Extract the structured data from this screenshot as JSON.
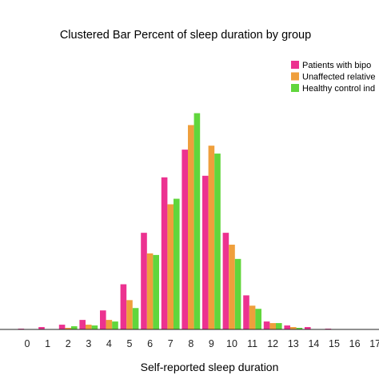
{
  "chart_data": {
    "type": "bar",
    "title": "Clustered Bar Percent of sleep duration by group",
    "xlabel": "Self-reported sleep duration",
    "ylabel": "",
    "grid": false,
    "legend_position": "top-right",
    "categories": [
      "0",
      "1",
      "2",
      "3",
      "4",
      "5",
      "6",
      "7",
      "8",
      "9",
      "10",
      "11",
      "12",
      "13",
      "14",
      "15",
      "16",
      "17"
    ],
    "ylim": [
      0,
      32
    ],
    "series": [
      {
        "name": "Patients with bipo",
        "color": "#ec3290",
        "values": [
          0.1,
          0.3,
          0.6,
          1.2,
          2.4,
          5.7,
          12.2,
          19.2,
          22.7,
          19.4,
          12.2,
          4.3,
          1.0,
          0.5,
          0.3,
          0.1,
          0.0,
          0.0
        ]
      },
      {
        "name": "Unaffected relative",
        "color": "#ef9f3c",
        "values": [
          0.0,
          0.0,
          0.2,
          0.6,
          1.2,
          3.7,
          9.6,
          15.8,
          25.8,
          23.2,
          10.7,
          3.0,
          0.8,
          0.3,
          0.0,
          0.0,
          0.0,
          0.0
        ]
      },
      {
        "name": "Healthy control ind",
        "color": "#61d63c",
        "values": [
          0.0,
          0.0,
          0.4,
          0.5,
          1.0,
          2.7,
          9.4,
          16.5,
          27.3,
          22.2,
          8.9,
          2.6,
          0.8,
          0.2,
          0.0,
          0.0,
          0.0,
          0.0
        ]
      }
    ]
  }
}
